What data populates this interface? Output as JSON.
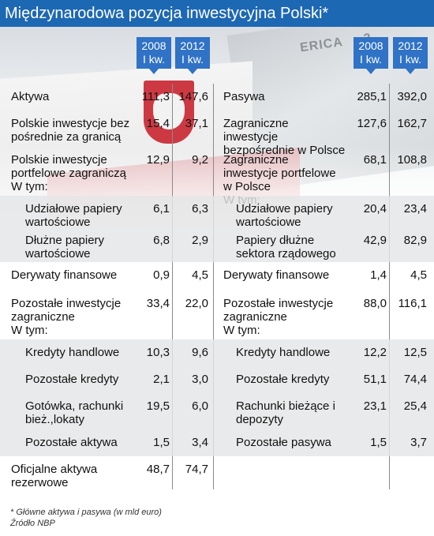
{
  "title": "Międzynarodowa pozycja inwestycyjna Polski*",
  "headers": {
    "left": [
      {
        "year": "2008",
        "q": "I kw."
      },
      {
        "year": "2012",
        "q": "I kw."
      }
    ],
    "right": [
      {
        "year": "2008",
        "q": "I kw."
      },
      {
        "year": "2012",
        "q": "I kw."
      }
    ]
  },
  "rows": [
    {
      "sub": false,
      "h": 34,
      "l": "Aktywa",
      "l1": "111,3",
      "l2": "147,6",
      "r": "Pasywa",
      "r1": "285,1",
      "r2": "392,0"
    },
    {
      "sub": false,
      "h": 46,
      "l": "Polskie inwestycje bez pośrednie za granicą",
      "l1": "15,4",
      "l2": "37,1",
      "r": "Zagraniczne inwestycje bezpośrednie w Polsce",
      "r1": "127,6",
      "r2": "162,7"
    },
    {
      "sub": false,
      "h": 62,
      "l": "Polskie inwestycje portfelowe zagraniczą\n    W tym:",
      "l1": "12,9",
      "l2": "9,2",
      "r": "Zagraniczne inwestycje portfelowe w Polsce\n    W tym:",
      "r1": "68,1",
      "r2": "108,8"
    },
    {
      "sub": true,
      "h": 40,
      "l": "Udziałowe papiery wartościowe",
      "l1": "6,1",
      "l2": "6,3",
      "r": "Udziałowe papiery wartościowe",
      "r1": "20,4",
      "r2": "23,4"
    },
    {
      "sub": true,
      "h": 44,
      "l": "Dłużne papiery wartościowe",
      "l1": "6,8",
      "l2": "2,9",
      "r": "Papiery dłużne sektora rządowego",
      "r1": "42,9",
      "r2": "82,9"
    },
    {
      "sub": false,
      "h": 36,
      "l": "Derywaty finansowe",
      "l1": "0,9",
      "l2": "4,5",
      "r": "Derywaty finansowe",
      "r1": "1,4",
      "r2": "4,5"
    },
    {
      "sub": false,
      "h": 62,
      "l": "Pozostałe inwestycje zagraniczne\n    W tym:",
      "l1": "33,4",
      "l2": "22,0",
      "r": "Pozostałe inwestycje zagraniczne\n    W tym:",
      "r1": "88,0",
      "r2": "116,1"
    },
    {
      "sub": true,
      "h": 34,
      "l": "Kredyty handlowe",
      "l1": "10,3",
      "l2": "9,6",
      "r": "Kredyty handlowe",
      "r1": "12,2",
      "r2": "12,5"
    },
    {
      "sub": true,
      "h": 34,
      "l": "Pozostałe kredyty",
      "l1": "2,1",
      "l2": "3,0",
      "r": "Pozostałe kredyty",
      "r1": "51,1",
      "r2": "74,4"
    },
    {
      "sub": true,
      "h": 46,
      "l": "Gotówka, rachunki bież.,lokaty",
      "l1": "19,5",
      "l2": "6,0",
      "r": "Rachunki bieżące i depozyty",
      "r1": "23,1",
      "r2": "25,4"
    },
    {
      "sub": true,
      "h": 34,
      "l": "Pozostałe aktywa",
      "l1": "1,5",
      "l2": "3,4",
      "r": "Pozostałe pasywa",
      "r1": "1,5",
      "r2": "3,7"
    },
    {
      "sub": false,
      "h": 42,
      "l": "Oficjalne aktywa rezerwowe",
      "l1": "48,7",
      "l2": "74,7",
      "r": "",
      "r1": "",
      "r2": ""
    }
  ],
  "footnote": "* Główne aktywa i pasywa (w mld euro)",
  "source": "Źródło NBP"
}
